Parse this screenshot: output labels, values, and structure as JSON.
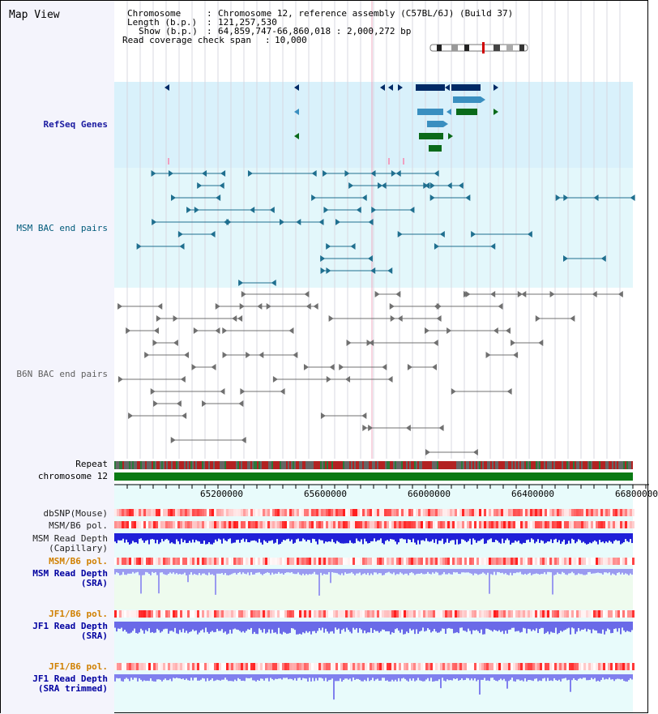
{
  "title": "Map View",
  "info": {
    "chromosome_label": "Chromosome",
    "chromosome_value": "Chromosome 12, reference assembly (C57BL/6J) (Build 37)",
    "length_label": "Length (b.p.)",
    "length_value": "121,257,530",
    "show_label": "Show (b.p.)",
    "show_value": "64,859,747-66,860,018 : 2,000,272 bp",
    "coverage_label": "Read coverage check span",
    "coverage_value": "10,000"
  },
  "tracks": {
    "refseq": "RefSeq Genes",
    "msm_bac": "MSM BAC end pairs",
    "b6n_bac": "B6N BAC end pairs",
    "repeat": "Repeat",
    "chromosome": "chromosome 12",
    "dbsnp": "dbSNP(Mouse)",
    "msm_b6_pol_1": "MSM/B6 pol.",
    "msm_depth_cap_1": "MSM Read Depth",
    "msm_depth_cap_2": "(Capillary)",
    "msm_b6_pol_2": "MSM/B6 pol.",
    "msm_depth_sra_1": "MSM Read Depth",
    "msm_depth_sra_2": "(SRA)",
    "jf1_b6_pol_1": "JF1/B6 pol.",
    "jf1_depth_sra_1": "JF1 Read Depth",
    "jf1_depth_sra_2": "(SRA)",
    "jf1_b6_pol_2": "JF1/B6 pol.",
    "jf1_depth_trim_1": "JF1 Read Depth",
    "jf1_depth_trim_2": "(SRA trimmed)"
  },
  "axis": {
    "ticks": [
      "65200000",
      "65600000",
      "66000000",
      "66400000",
      "66800000"
    ]
  },
  "colors": {
    "refseq_label": "#1a1aa0",
    "msm_label": "#005a7a",
    "b6n_label": "#606060",
    "pol_label": "#d08000",
    "depth_label": "#0000a0",
    "refseq_bg": "#d9f1fb",
    "msm_bg": "#e3f7fb",
    "depth_bar": "#2222dd",
    "gene_dark": "#002a66",
    "gene_mid": "#3a8fc0",
    "gene_green": "#0a6a1a"
  }
}
